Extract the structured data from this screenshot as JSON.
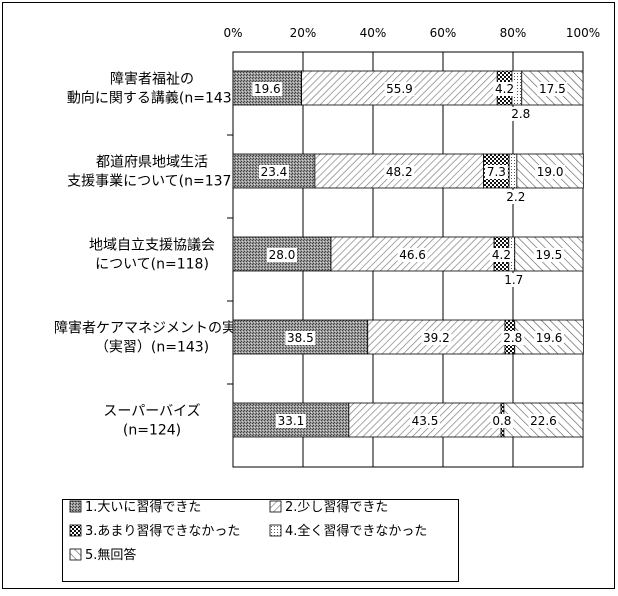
{
  "chart_data": {
    "type": "bar",
    "stacked": true,
    "orientation": "horizontal",
    "percent_scale": true,
    "title": "",
    "xlabel": "",
    "ylabel": "",
    "xlim": [
      0,
      100
    ],
    "ticks": [
      "0%",
      "20%",
      "40%",
      "60%",
      "80%",
      "100%"
    ],
    "categories": [
      {
        "lines": [
          "障害者福祉の",
          "動向に関する講義(n=143)"
        ]
      },
      {
        "lines": [
          "都道府県地域生活",
          "支援事業について(n=137)"
        ]
      },
      {
        "lines": [
          "地域自立支援協議会",
          "について(n=118)"
        ]
      },
      {
        "lines": [
          "障害者ケアマネジメントの実践",
          "（実習）(n=143)"
        ]
      },
      {
        "lines": [
          "スーパーバイズ",
          "(n=124)"
        ]
      }
    ],
    "series": [
      {
        "name": "1.大いに習得できた",
        "values": [
          19.6,
          23.4,
          28.0,
          38.5,
          33.1
        ],
        "labels": [
          "19.6",
          "23.4",
          "28.0",
          "38.5",
          "33.1"
        ],
        "pattern": "dense"
      },
      {
        "name": "2.少し習得できた",
        "values": [
          55.9,
          48.2,
          46.6,
          39.2,
          43.5
        ],
        "labels": [
          "55.9",
          "48.2",
          "46.6",
          "39.2",
          "43.5"
        ],
        "pattern": "diag"
      },
      {
        "name": "3.あまり習得できなかった",
        "values": [
          4.2,
          7.3,
          4.2,
          2.8,
          0.8
        ],
        "labels": [
          "4.2",
          "7.3",
          "4.2",
          "2.8",
          "0.8"
        ],
        "pattern": "check"
      },
      {
        "name": "4.全く習得できなかった",
        "values": [
          2.8,
          2.2,
          1.7,
          0.0,
          0.0
        ],
        "labels": [
          "2.8",
          "2.2",
          "1.7",
          "",
          ""
        ],
        "pattern": "dots"
      },
      {
        "name": "5.無回答",
        "values": [
          17.5,
          19.0,
          19.5,
          19.6,
          22.6
        ],
        "labels": [
          "17.5",
          "19.0",
          "19.5",
          "19.6",
          "22.6"
        ],
        "pattern": "diag2"
      }
    ],
    "legend_position": "bottom",
    "grid": true
  }
}
